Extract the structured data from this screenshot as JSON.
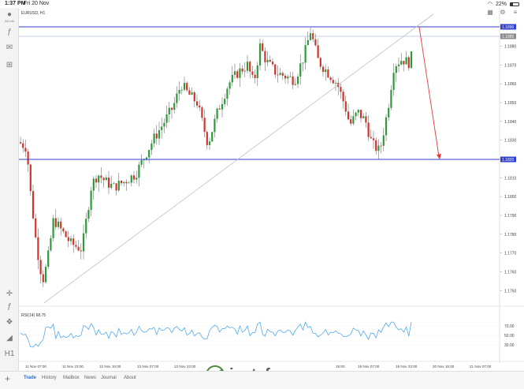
{
  "status": {
    "time": "1:37 PM",
    "date": "Fri 20 Nov",
    "battery": "22%"
  },
  "sidebar": {
    "avatar_label": "All List"
  },
  "chart": {
    "symbol": "EURUSD, H1",
    "rsi_label": "RSI(14) 68.75",
    "price_labels": [
      "1.1880",
      "1.1870",
      "1.1860",
      "1.1850",
      "1.1840",
      "1.1830",
      "1.1820",
      "1.1810",
      "1.1800",
      "1.1790",
      "1.1780",
      "1.1770",
      "1.1760",
      "1.1750"
    ],
    "tag_top": "1.1890",
    "tag_mid": "1.1885",
    "tag_support": "1.1820",
    "rsi_labels": [
      "70.00",
      "50.00",
      "30.00"
    ],
    "time_labels": [
      "11 Nov 07:00",
      "11 Nov 23:00",
      "12 Nov 15:00",
      "13 Nov 07:00",
      "13 Nov 23:00",
      "19 Nov 07:00",
      "19 Nov 23:00",
      "20 Nov 15:00",
      "21 Nov 07:00"
    ],
    "time_label_overlay": "15:00",
    "colors": {
      "up": "#2e9a3a",
      "down": "#d0342c",
      "resistance": "#2f3fd1",
      "support": "#2f3fd1",
      "trend": "#bfbfbf",
      "arrow": "#e23b3b",
      "rsi": "#3aa0e6"
    }
  },
  "tabs": [
    "Trade",
    "History",
    "Mailbox",
    "News",
    "Journal",
    "About"
  ],
  "active_tab": "Trade",
  "watermark": "instaforex"
}
